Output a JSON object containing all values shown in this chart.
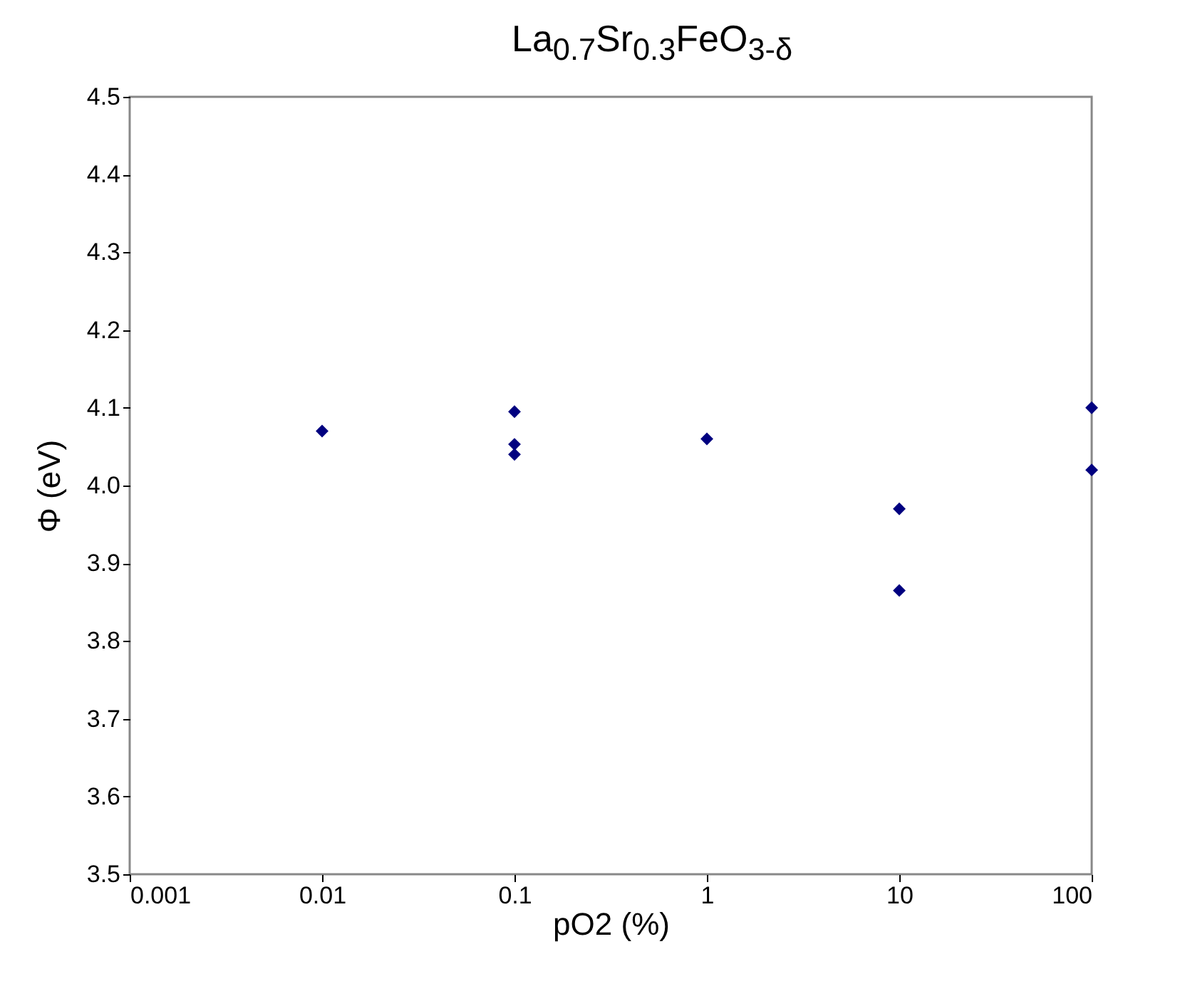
{
  "chart_data": {
    "type": "scatter",
    "title": "La$_{0.7}$Sr$_{0.3}$FeO$_{3-δ}$",
    "xlabel": "pO2 (%)",
    "ylabel": "Φ (eV)",
    "x": [
      0.01,
      0.1,
      0.1,
      0.1,
      1,
      10,
      10,
      100,
      100
    ],
    "series": [
      {
        "color": "#000080",
        "values": [
          4.07,
          4.095,
          4.053,
          4.04,
          4.06,
          3.97,
          3.865,
          4.1,
          4.02
        ]
      }
    ],
    "log": "x",
    "marker": "diamond",
    "xlim": [
      0.001,
      100
    ],
    "xticks": [
      0.001,
      0.01,
      0.1,
      1,
      10,
      100
    ],
    "ylim": [
      3.5,
      4.5
    ],
    "yticks": [
      3.5,
      3.6,
      3.7,
      3.8,
      3.9,
      {
        "value": 4,
        "label": "4.0"
      },
      4.1,
      4.2,
      4.3,
      4.4,
      4.5
    ]
  }
}
